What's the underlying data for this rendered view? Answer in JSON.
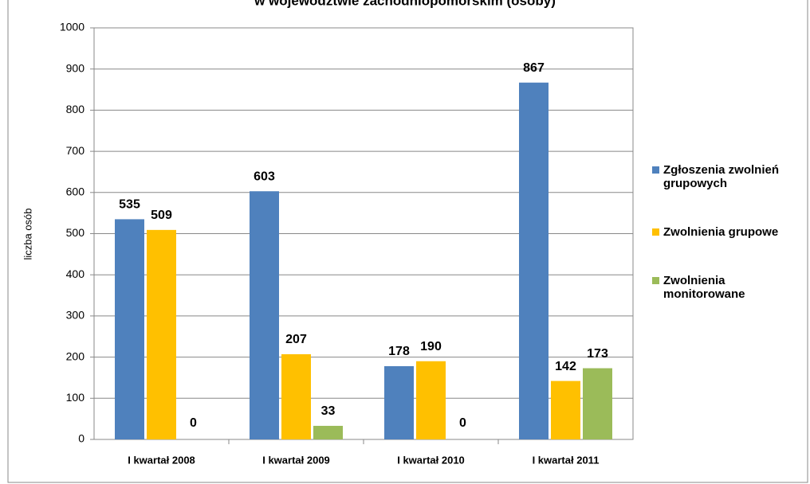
{
  "chart_data": {
    "type": "bar",
    "title": "w województwie zachodniopomorskim (osoby)",
    "y_label": "liczba osób",
    "categories": [
      "I kwartał 2008",
      "I kwartał 2009",
      "I kwartał 2010",
      "I kwartał 2011"
    ],
    "series": [
      {
        "name": "Zgłoszenia zwolnień grupowych",
        "color": "#4f81bd",
        "values": [
          535,
          603,
          178,
          867
        ]
      },
      {
        "name": "Zwolnienia grupowe",
        "color": "#ffc000",
        "values": [
          509,
          207,
          190,
          142
        ]
      },
      {
        "name": "Zwolnienia monitorowane",
        "color": "#9bbb59",
        "values": [
          0,
          33,
          0,
          173
        ]
      }
    ],
    "ylim": [
      0,
      1000
    ],
    "yticks": [
      0,
      100,
      200,
      300,
      400,
      500,
      600,
      700,
      800,
      900,
      1000
    ],
    "grid": true,
    "legend": "right"
  }
}
